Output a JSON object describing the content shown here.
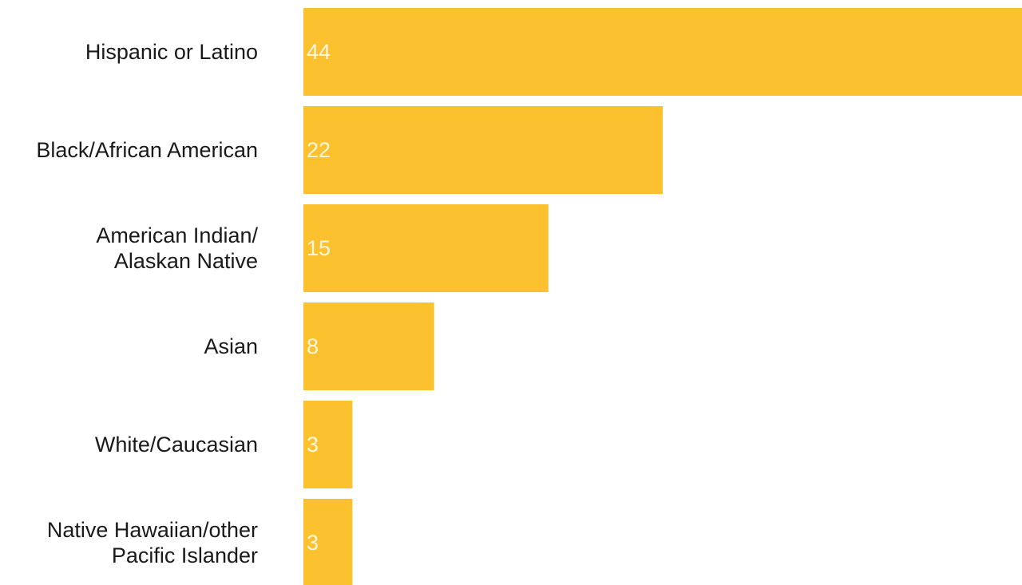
{
  "chart_data": {
    "type": "bar",
    "orientation": "horizontal",
    "categories": [
      [
        "Hispanic or Latino"
      ],
      [
        "Black/African American"
      ],
      [
        "American Indian/",
        "Alaskan Native"
      ],
      [
        "Asian"
      ],
      [
        "White/Caucasian"
      ],
      [
        "Native Hawaiian/other",
        "Pacific Islander"
      ]
    ],
    "values": [
      44,
      22,
      15,
      8,
      3,
      3
    ],
    "value_labels": [
      "44",
      "22",
      "15",
      "8",
      "3",
      "3"
    ],
    "xlim": [
      0,
      44
    ],
    "title": "",
    "xlabel": "",
    "ylabel": "",
    "grid": false,
    "legend": "none",
    "bar_color": "#fbc12e",
    "label_color": "#1a1a1a",
    "value_label_color": "#ffffff"
  }
}
